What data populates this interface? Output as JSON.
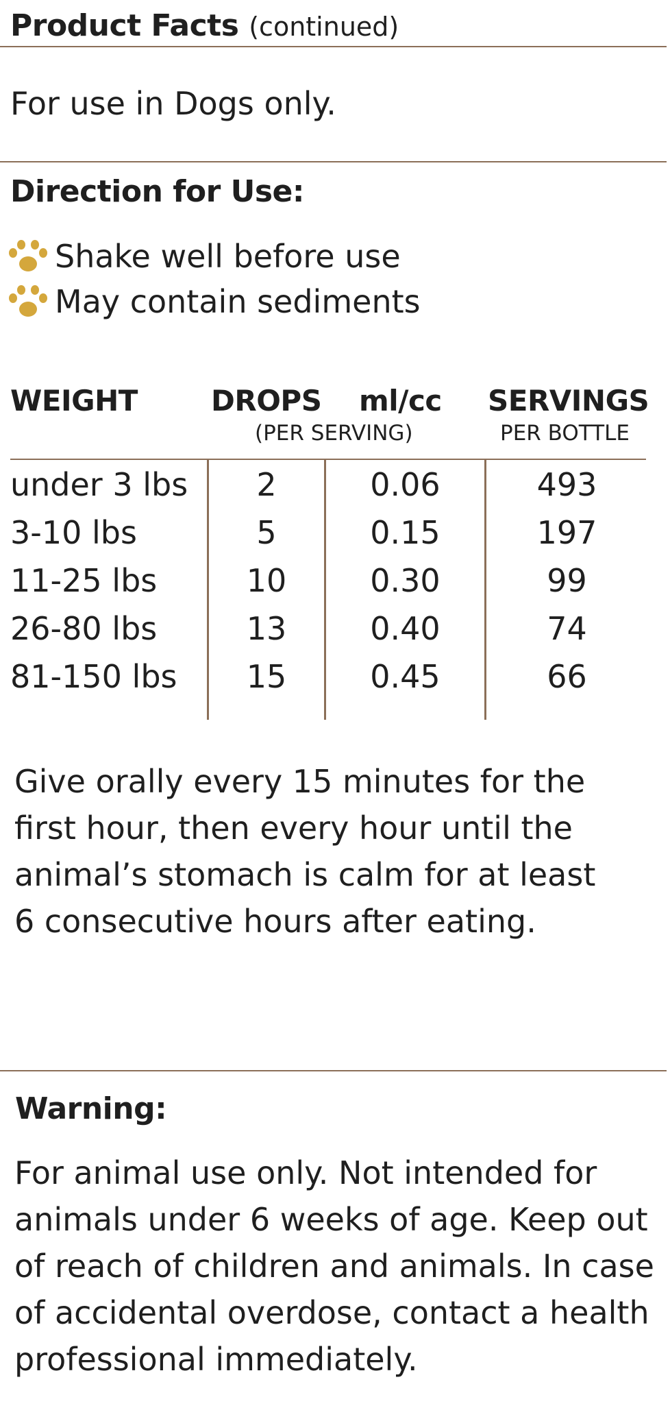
{
  "header": {
    "title": "Product Facts",
    "subtitle": "(continued)"
  },
  "intro": "For use in Dogs only.",
  "directions": {
    "heading": "Direction for Use:",
    "items": [
      {
        "icon": "paw-icon",
        "text": "Shake well before use"
      },
      {
        "icon": "paw-icon",
        "text": "May contain sediments"
      }
    ]
  },
  "dosage_table": {
    "headers": {
      "weight": "WEIGHT",
      "drops": "DROPS",
      "ml": "ml/cc",
      "per_serving": "(PER SERVING)",
      "servings": "SERVINGS",
      "per_bottle": "PER BOTTLE"
    },
    "rows": [
      {
        "weight": "under 3 lbs",
        "drops": "2",
        "ml": "0.06",
        "servings": "493"
      },
      {
        "weight": "3-10 lbs",
        "drops": "5",
        "ml": "0.15",
        "servings": "197"
      },
      {
        "weight": "11-25 lbs",
        "drops": "10",
        "ml": "0.30",
        "servings": "99"
      },
      {
        "weight": "26-80 lbs",
        "drops": "13",
        "ml": "0.40",
        "servings": "74"
      },
      {
        "weight": "81-150 lbs",
        "drops": "15",
        "ml": "0.45",
        "servings": "66"
      }
    ]
  },
  "instructions": {
    "lines": [
      "Give orally every 15 minutes for the",
      "first hour, then every hour until the",
      "animal’s stomach is calm for at least",
      "6 consecutive hours after eating."
    ]
  },
  "warning": {
    "heading": "Warning:",
    "lines": [
      "For animal use only. Not intended for",
      "animals under 6 weeks of age. Keep out",
      "of reach of children and animals. In case",
      "of accidental overdose, contact a health",
      "professional immediately."
    ]
  },
  "colors": {
    "rule": "#8b6f58",
    "paw": "#d4a73c",
    "text": "#1f1f1f"
  }
}
